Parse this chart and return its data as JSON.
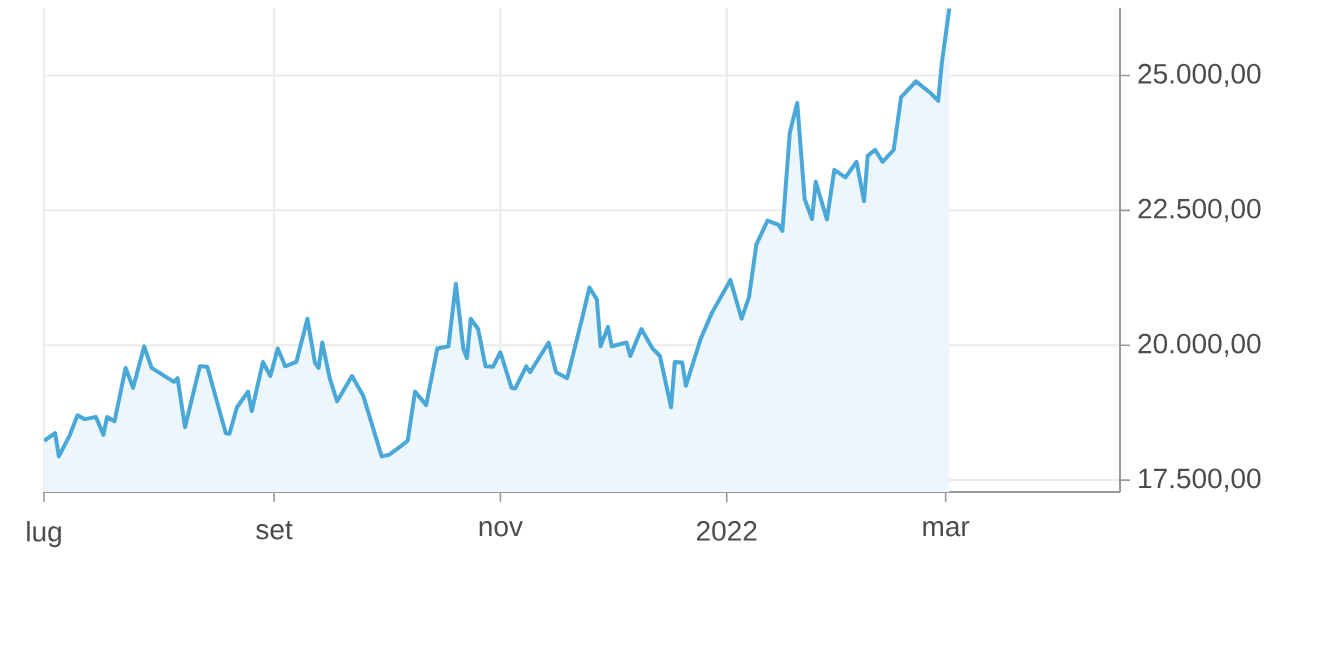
{
  "chart_data": {
    "type": "area",
    "grid": true,
    "xlim": [
      "2021-07-01",
      "2022-04-17"
    ],
    "xticks": [
      {
        "value": "2021-07-01",
        "label": "lug"
      },
      {
        "value": "2021-09-01",
        "label": "set"
      },
      {
        "value": "2021-11-01",
        "label": "nov"
      },
      {
        "value": "2022-01-01",
        "label": "2022"
      },
      {
        "value": "2022-03-01",
        "label": "mar"
      }
    ],
    "ylim": [
      17280,
      26250
    ],
    "yticks": [
      {
        "value": 17500,
        "label": "17.500,00"
      },
      {
        "value": 20000,
        "label": "20.000,00"
      },
      {
        "value": 22500,
        "label": "22.500,00"
      },
      {
        "value": 25000,
        "label": "25.000,00"
      }
    ],
    "x": [
      "2021-07-01",
      "2021-07-04",
      "2021-07-05",
      "2021-07-08",
      "2021-07-10",
      "2021-07-12",
      "2021-07-15",
      "2021-07-17",
      "2021-07-18",
      "2021-07-20",
      "2021-07-23",
      "2021-07-25",
      "2021-07-28",
      "2021-07-30",
      "2021-08-05",
      "2021-08-06",
      "2021-08-08",
      "2021-08-12",
      "2021-08-14",
      "2021-08-19",
      "2021-08-20",
      "2021-08-22",
      "2021-08-25",
      "2021-08-26",
      "2021-08-29",
      "2021-08-31",
      "2021-09-02",
      "2021-09-04",
      "2021-09-07",
      "2021-09-10",
      "2021-09-12",
      "2021-09-13",
      "2021-09-14",
      "2021-09-16",
      "2021-09-18",
      "2021-09-22",
      "2021-09-25",
      "2021-09-30",
      "2021-10-02",
      "2021-10-05",
      "2021-10-07",
      "2021-10-09",
      "2021-10-12",
      "2021-10-15",
      "2021-10-18",
      "2021-10-20",
      "2021-10-22",
      "2021-10-23",
      "2021-10-24",
      "2021-10-26",
      "2021-10-28",
      "2021-10-30",
      "2021-11-01",
      "2021-11-04",
      "2021-11-05",
      "2021-11-08",
      "2021-11-09",
      "2021-11-14",
      "2021-11-16",
      "2021-11-19",
      "2021-11-23",
      "2021-11-25",
      "2021-11-27",
      "2021-11-28",
      "2021-11-30",
      "2021-12-01",
      "2021-12-05",
      "2021-12-06",
      "2021-12-09",
      "2021-12-12",
      "2021-12-14",
      "2021-12-17",
      "2021-12-18",
      "2021-12-20",
      "2021-12-21",
      "2021-12-25",
      "2021-12-28",
      "2022-01-02",
      "2022-01-05",
      "2022-01-07",
      "2022-01-09",
      "2022-01-12",
      "2022-01-15",
      "2022-01-16",
      "2022-01-18",
      "2022-01-20",
      "2022-01-22",
      "2022-01-24",
      "2022-01-25",
      "2022-01-28",
      "2022-01-30",
      "2022-02-02",
      "2022-02-05",
      "2022-02-07",
      "2022-02-08",
      "2022-02-10",
      "2022-02-12",
      "2022-02-15",
      "2022-02-17",
      "2022-02-21",
      "2022-02-25",
      "2022-02-27",
      "2022-02-28",
      "2022-03-02"
    ],
    "series": [
      {
        "color": "#4aa8d8",
        "values": [
          18230,
          18370,
          17940,
          18340,
          18700,
          18630,
          18670,
          18340,
          18670,
          18590,
          19580,
          19210,
          19980,
          19580,
          19320,
          19390,
          18480,
          19610,
          19600,
          18370,
          18360,
          18850,
          19140,
          18780,
          19690,
          19430,
          19940,
          19610,
          19690,
          20490,
          19680,
          19580,
          20050,
          19390,
          18960,
          19430,
          19070,
          17940,
          17970,
          18120,
          18230,
          19140,
          18890,
          19940,
          19980,
          21140,
          19940,
          19760,
          20490,
          20300,
          19610,
          19600,
          19870,
          19210,
          19200,
          19610,
          19500,
          20050,
          19500,
          19390,
          20490,
          21070,
          20850,
          19980,
          20340,
          19980,
          20050,
          19800,
          20300,
          19940,
          19800,
          18850,
          19690,
          19680,
          19250,
          20120,
          20600,
          21210,
          20490,
          20890,
          21870,
          22310,
          22230,
          22120,
          23940,
          24490,
          22710,
          22340,
          23030,
          22330,
          23250,
          23110,
          23400,
          22670,
          23510,
          23620,
          23400,
          23620,
          24600,
          24890,
          24670,
          24530,
          25250,
          26240
        ]
      }
    ]
  }
}
